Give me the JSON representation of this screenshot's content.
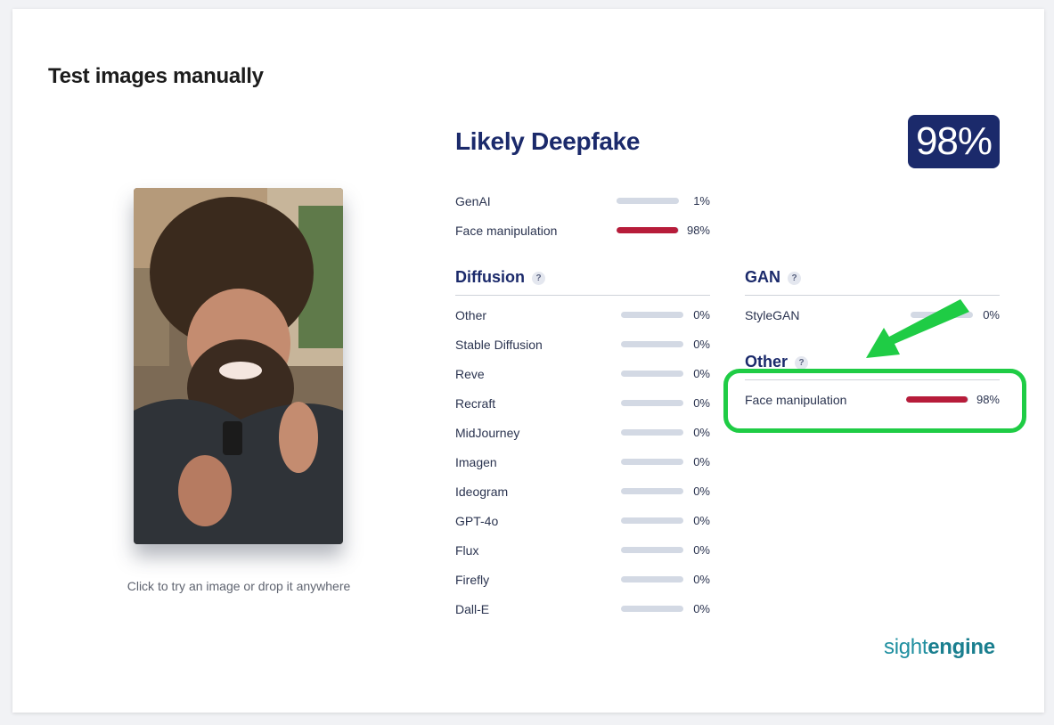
{
  "page": {
    "title": "Test images manually"
  },
  "upload": {
    "hint": "Click to try an image or drop it anywhere"
  },
  "result": {
    "verdict": "Likely Deepfake",
    "score": "98%",
    "top": [
      {
        "label": "GenAI",
        "value": 0.01,
        "pct": "1%",
        "color": "#d3d9e4"
      },
      {
        "label": "Face manipulation",
        "value": 0.98,
        "pct": "98%",
        "color": "#b71c3a"
      }
    ]
  },
  "diffusion": {
    "title": "Diffusion",
    "help": "?",
    "items": [
      {
        "label": "Other",
        "value": 0,
        "pct": "0%"
      },
      {
        "label": "Stable Diffusion",
        "value": 0,
        "pct": "0%"
      },
      {
        "label": "Reve",
        "value": 0,
        "pct": "0%"
      },
      {
        "label": "Recraft",
        "value": 0,
        "pct": "0%"
      },
      {
        "label": "MidJourney",
        "value": 0,
        "pct": "0%"
      },
      {
        "label": "Imagen",
        "value": 0,
        "pct": "0%"
      },
      {
        "label": "Ideogram",
        "value": 0,
        "pct": "0%"
      },
      {
        "label": "GPT-4o",
        "value": 0,
        "pct": "0%"
      },
      {
        "label": "Flux",
        "value": 0,
        "pct": "0%"
      },
      {
        "label": "Firefly",
        "value": 0,
        "pct": "0%"
      },
      {
        "label": "Dall-E",
        "value": 0,
        "pct": "0%"
      }
    ]
  },
  "gan": {
    "title": "GAN",
    "help": "?",
    "items": [
      {
        "label": "StyleGAN",
        "value": 0,
        "pct": "0%"
      }
    ]
  },
  "other": {
    "title": "Other",
    "help": "?",
    "items": [
      {
        "label": "Face manipulation",
        "value": 0.98,
        "pct": "98%",
        "color": "#b71c3a"
      }
    ]
  },
  "annotation": {
    "highlight_color": "#1fcc45",
    "arrow_icon": "arrow-down-left-icon"
  },
  "brand": {
    "part1": "sight",
    "part2": "engine"
  }
}
